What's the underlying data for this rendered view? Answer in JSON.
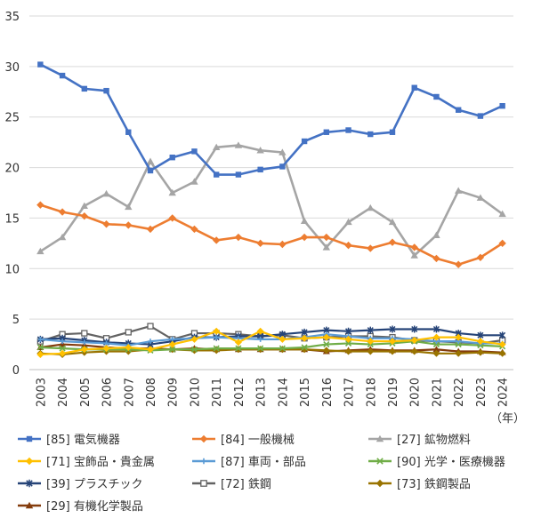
{
  "chart_data": {
    "type": "line",
    "title": "",
    "xlabel": "（年）",
    "ylabel": "",
    "ylim": [
      0,
      35
    ],
    "yticks": [
      0,
      5,
      10,
      15,
      20,
      25,
      30,
      35
    ],
    "grid": "horizontal",
    "legend_position": "bottom",
    "categories": [
      "2003",
      "2004",
      "2005",
      "2006",
      "2007",
      "2008",
      "2009",
      "2010",
      "2011",
      "2012",
      "2013",
      "2014",
      "2015",
      "2016",
      "2017",
      "2018",
      "2019",
      "2020",
      "2021",
      "2022",
      "2023",
      "2024"
    ],
    "series": [
      {
        "name": "[85] 電気機器",
        "color": "#4472C4",
        "marker": "square",
        "values": [
          30.2,
          29.1,
          27.8,
          27.6,
          23.5,
          19.7,
          21.0,
          21.6,
          19.3,
          19.3,
          19.8,
          20.1,
          22.6,
          23.5,
          23.7,
          23.3,
          23.5,
          27.9,
          27.0,
          25.7,
          25.1,
          26.1
        ]
      },
      {
        "name": "[84] 一般機械",
        "color": "#ED7D31",
        "marker": "diamond",
        "values": [
          16.3,
          15.6,
          15.2,
          14.4,
          14.3,
          13.9,
          15.0,
          13.9,
          12.8,
          13.1,
          12.5,
          12.4,
          13.1,
          13.1,
          12.3,
          12.0,
          12.6,
          12.1,
          11.0,
          10.4,
          11.1,
          12.5
        ]
      },
      {
        "name": "[27] 鉱物燃料",
        "color": "#A5A5A5",
        "marker": "triangle",
        "values": [
          11.7,
          13.1,
          16.2,
          17.4,
          16.1,
          20.6,
          17.5,
          18.6,
          22.0,
          22.2,
          21.7,
          21.5,
          14.7,
          12.1,
          14.6,
          16.0,
          14.6,
          11.3,
          13.3,
          17.7,
          17.0,
          15.4
        ]
      },
      {
        "name": "[71] 宝飾品・貴金属",
        "color": "#FFC000",
        "marker": "diamond",
        "values": [
          1.5,
          1.6,
          2.0,
          2.1,
          2.2,
          2.0,
          2.5,
          3.0,
          3.8,
          2.7,
          3.8,
          3.0,
          3.1,
          3.2,
          3.0,
          2.8,
          2.8,
          2.9,
          3.2,
          3.2,
          2.8,
          2.5
        ]
      },
      {
        "name": "[87] 車両・部品",
        "color": "#5B9BD5",
        "marker": "plus",
        "values": [
          3.0,
          2.8,
          2.7,
          2.6,
          2.4,
          2.8,
          3.0,
          3.1,
          3.2,
          3.1,
          3.0,
          3.0,
          3.2,
          3.5,
          3.3,
          3.1,
          3.1,
          3.0,
          2.8,
          2.8,
          2.6,
          2.6
        ]
      },
      {
        "name": "[90] 光学・医療機器",
        "color": "#70AD47",
        "marker": "x",
        "values": [
          2.2,
          2.1,
          2.0,
          2.0,
          2.0,
          1.9,
          2.0,
          2.0,
          2.1,
          2.1,
          2.1,
          2.1,
          2.2,
          2.5,
          2.6,
          2.5,
          2.6,
          2.8,
          2.5,
          2.5,
          2.4,
          2.3
        ]
      },
      {
        "name": "[39] プラスチック",
        "color": "#264478",
        "marker": "asterisk",
        "values": [
          3.0,
          3.1,
          2.9,
          2.7,
          2.6,
          2.5,
          2.8,
          3.2,
          3.2,
          3.3,
          3.3,
          3.5,
          3.7,
          3.9,
          3.8,
          3.9,
          4.0,
          4.0,
          4.0,
          3.6,
          3.4,
          3.4
        ]
      },
      {
        "name": "[72] 鉄鋼",
        "color": "#636363",
        "marker": "square-open",
        "values": [
          2.8,
          3.5,
          3.6,
          3.1,
          3.7,
          4.3,
          3.0,
          3.6,
          3.6,
          3.5,
          3.3,
          3.4,
          3.1,
          3.2,
          3.3,
          3.3,
          3.2,
          2.9,
          2.8,
          2.7,
          2.6,
          2.9
        ]
      },
      {
        "name": "[73] 鉄鋼製品",
        "color": "#997300",
        "marker": "diamond",
        "values": [
          1.6,
          1.5,
          1.7,
          1.8,
          1.8,
          2.0,
          2.0,
          1.9,
          1.9,
          2.0,
          2.0,
          2.0,
          2.0,
          1.9,
          1.8,
          1.8,
          1.8,
          1.8,
          1.6,
          1.6,
          1.7,
          1.6
        ]
      },
      {
        "name": "[29] 有機化学製品",
        "color": "#843C0C",
        "marker": "triangle",
        "values": [
          2.2,
          2.5,
          2.4,
          2.2,
          2.1,
          2.1,
          2.0,
          2.1,
          2.0,
          2.0,
          2.0,
          2.0,
          2.0,
          1.8,
          1.9,
          2.0,
          1.9,
          1.9,
          2.0,
          1.8,
          1.8,
          1.7
        ]
      }
    ]
  }
}
